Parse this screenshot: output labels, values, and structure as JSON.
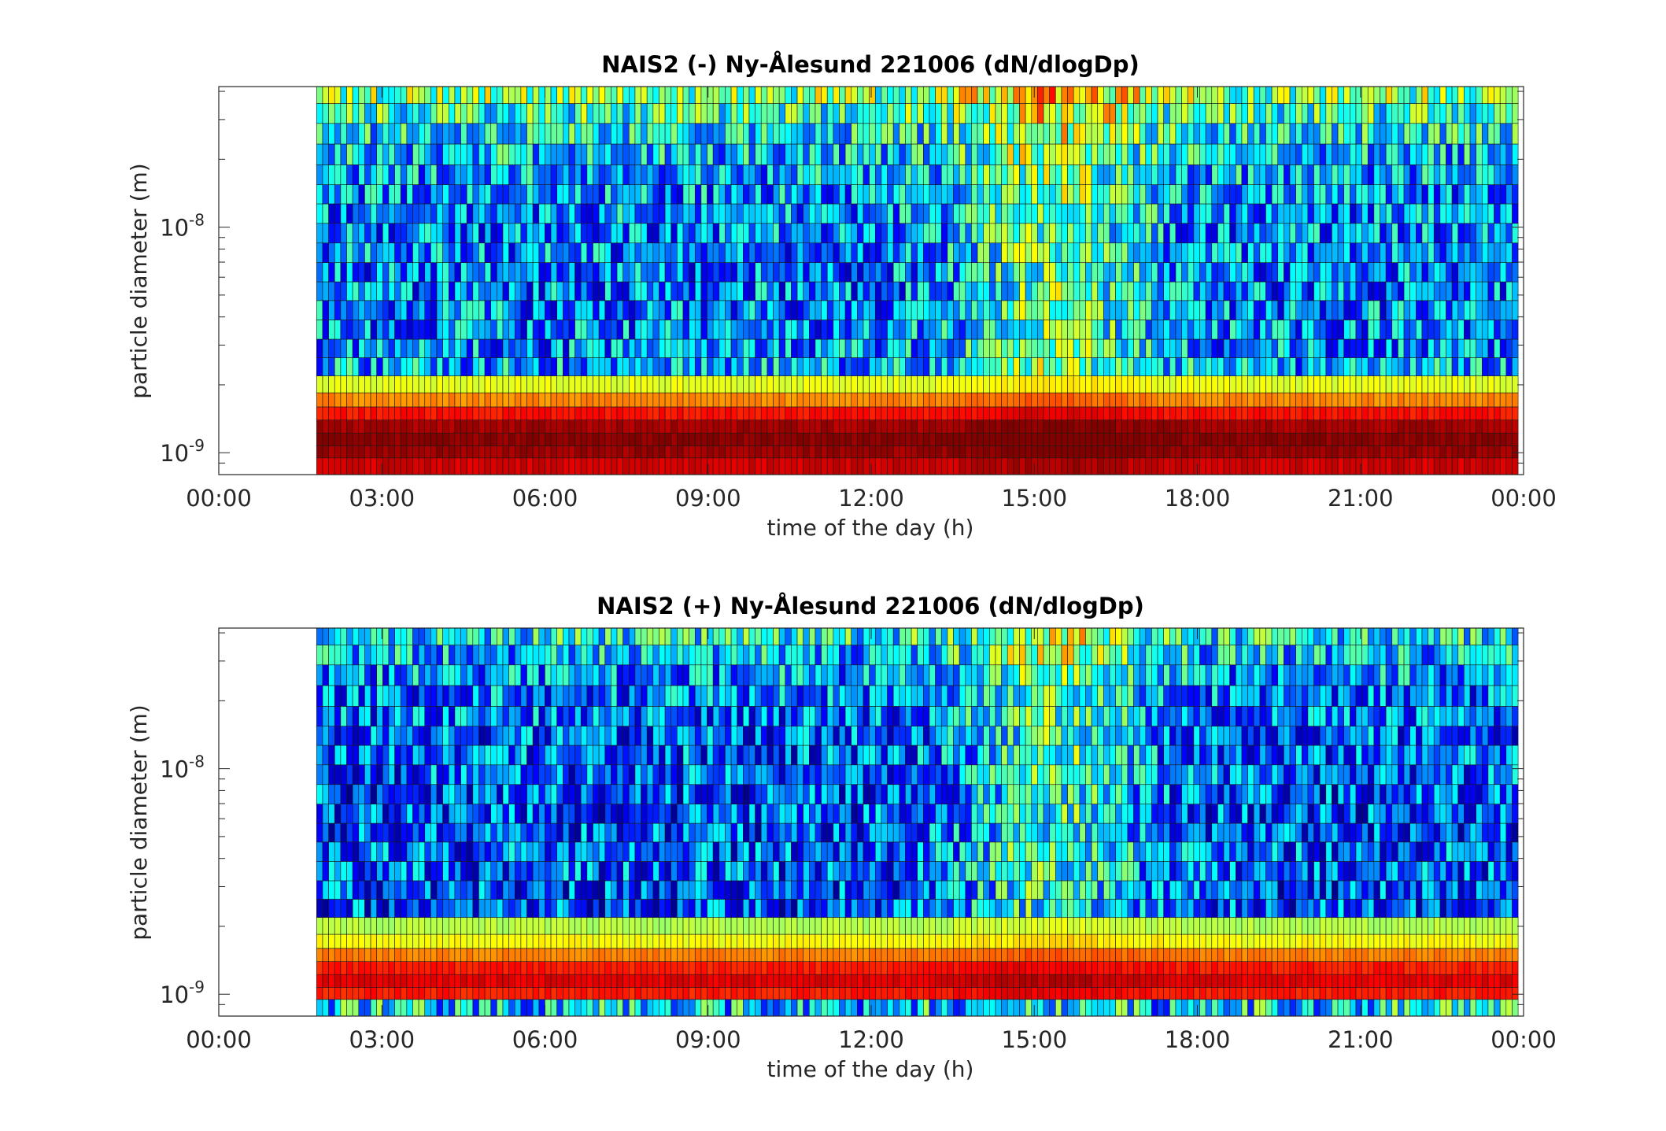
{
  "chart_data": [
    {
      "type": "heatmap",
      "title": "NAIS2 (-) Ny-Ålesund 221006 (dN/dlogDp)",
      "xlabel": "time of the day (h)",
      "ylabel": "particle diameter (m)",
      "xlim": [
        "00:00",
        "24:00"
      ],
      "x_ticks": [
        "00:00",
        "03:00",
        "06:00",
        "09:00",
        "12:00",
        "15:00",
        "18:00",
        "21:00",
        "00:00"
      ],
      "y_scale": "log",
      "ylim": [
        8e-10,
        4.2e-08
      ],
      "y_ticks": [
        {
          "base": "10",
          "exp": "-9",
          "value": 1e-09
        },
        {
          "base": "10",
          "exp": "-8",
          "value": 1e-08
        }
      ],
      "data_start_hour": 1.8,
      "data_end_hour": 23.9,
      "colormap": "jet",
      "size_bins": [
        9e-10,
        1e-09,
        1.15e-09,
        1.3e-09,
        1.5e-09,
        1.7e-09,
        2e-09,
        2.4e-09,
        2.9e-09,
        3.5e-09,
        4.3e-09,
        5.2e-09,
        6.3e-09,
        7.7e-09,
        9.4e-09,
        1.15e-08,
        1.4e-08,
        1.7e-08,
        2.1e-08,
        2.6e-08,
        3.2e-08,
        3.9e-08
      ],
      "bin_profile": [
        0.92,
        0.97,
        0.99,
        0.96,
        0.86,
        0.74,
        0.6,
        0.3,
        0.27,
        0.26,
        0.26,
        0.25,
        0.25,
        0.26,
        0.26,
        0.27,
        0.28,
        0.3,
        0.33,
        0.36,
        0.42,
        0.5
      ],
      "seed": 7
    },
    {
      "type": "heatmap",
      "title": "NAIS2 (+) Ny-Ålesund 221006 (dN/dlogDp)",
      "xlabel": "time of the day (h)",
      "ylabel": "particle diameter (m)",
      "xlim": [
        "00:00",
        "24:00"
      ],
      "x_ticks": [
        "00:00",
        "03:00",
        "06:00",
        "09:00",
        "12:00",
        "15:00",
        "18:00",
        "21:00",
        "00:00"
      ],
      "y_scale": "log",
      "ylim": [
        8e-10,
        4.2e-08
      ],
      "y_ticks": [
        {
          "base": "10",
          "exp": "-9",
          "value": 1e-09
        },
        {
          "base": "10",
          "exp": "-8",
          "value": 1e-08
        }
      ],
      "data_start_hour": 1.8,
      "data_end_hour": 23.9,
      "colormap": "jet",
      "size_bins": [
        9e-10,
        1e-09,
        1.15e-09,
        1.3e-09,
        1.5e-09,
        1.7e-09,
        2e-09,
        2.4e-09,
        2.9e-09,
        3.5e-09,
        4.3e-09,
        5.2e-09,
        6.3e-09,
        7.7e-09,
        9.4e-09,
        1.15e-08,
        1.4e-08,
        1.7e-08,
        2.1e-08,
        2.6e-08,
        3.2e-08,
        3.9e-08
      ],
      "bin_profile": [
        0.2,
        0.85,
        0.9,
        0.85,
        0.75,
        0.62,
        0.55,
        0.2,
        0.2,
        0.22,
        0.22,
        0.2,
        0.2,
        0.2,
        0.22,
        0.22,
        0.22,
        0.24,
        0.25,
        0.28,
        0.32,
        0.38
      ],
      "seed": 13
    }
  ]
}
